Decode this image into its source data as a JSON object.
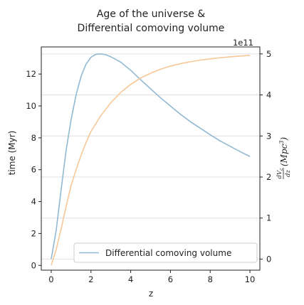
{
  "chart_data": {
    "type": "line",
    "title_line1": "Age of the universe &",
    "title_line2": "Differential comoving volume",
    "xlabel": "z",
    "ylabel_left": "time (Myr)",
    "ylabel_right_num": "dV",
    "ylabel_right_num_sub": "c",
    "ylabel_right_den": "dz",
    "ylabel_right_unit": "(Mpc",
    "ylabel_right_unit_sup": "3",
    "ylabel_right_unit_close": ")",
    "right_offset_text": "1e11",
    "xlim": [
      -0.5,
      10.5
    ],
    "ylim_left": [
      -0.3,
      13.7
    ],
    "ylim_right": [
      -0.27,
      5.17
    ],
    "x_ticks": [
      0,
      2,
      4,
      6,
      8,
      10
    ],
    "x_tick_labels": [
      "0",
      "2",
      "4",
      "6",
      "8",
      "10"
    ],
    "y_left_ticks": [
      0,
      2,
      4,
      6,
      8,
      10,
      12
    ],
    "y_left_tick_labels": [
      "0",
      "2",
      "4",
      "6",
      "8",
      "10",
      "12"
    ],
    "y_right_ticks": [
      0,
      1,
      2,
      3,
      4,
      5
    ],
    "y_right_tick_labels": [
      "0",
      "1",
      "2",
      "3",
      "4",
      "5"
    ],
    "grid": true,
    "legend_position": "lower-right",
    "legend_entries": [
      "Differential comoving volume"
    ],
    "colors": {
      "volume": "#92b9d3",
      "age": "#f8c796",
      "grid": "#e0e0e0",
      "axis": "#222222"
    },
    "series": [
      {
        "axis": "right",
        "color": "#92b9d3",
        "x": [
          0,
          0.25,
          0.5,
          0.75,
          1,
          1.25,
          1.5,
          1.75,
          2,
          2.25,
          2.5,
          2.75,
          3,
          3.5,
          4,
          4.5,
          5,
          5.5,
          6,
          6.5,
          7,
          7.5,
          8,
          8.5,
          9,
          9.5,
          10
        ],
        "values": [
          0,
          0.7,
          1.7,
          2.65,
          3.4,
          4.0,
          4.45,
          4.75,
          4.92,
          4.99,
          5.0,
          4.98,
          4.93,
          4.8,
          4.6,
          4.37,
          4.15,
          3.93,
          3.73,
          3.53,
          3.35,
          3.19,
          3.03,
          2.88,
          2.75,
          2.62,
          2.5
        ]
      },
      {
        "axis": "left",
        "color": "#f8c796",
        "x": [
          0,
          0.25,
          0.5,
          0.75,
          1,
          1.25,
          1.5,
          1.75,
          2,
          2.5,
          3,
          3.5,
          4,
          4.5,
          5,
          5.5,
          6,
          6.5,
          7,
          7.5,
          8,
          8.5,
          9,
          9.5,
          10
        ],
        "values": [
          0,
          1.0,
          2.3,
          3.7,
          5.0,
          6.0,
          6.9,
          7.7,
          8.4,
          9.4,
          10.2,
          10.85,
          11.35,
          11.75,
          12.05,
          12.3,
          12.5,
          12.65,
          12.77,
          12.87,
          12.95,
          13.02,
          13.08,
          13.13,
          13.17
        ]
      }
    ]
  }
}
